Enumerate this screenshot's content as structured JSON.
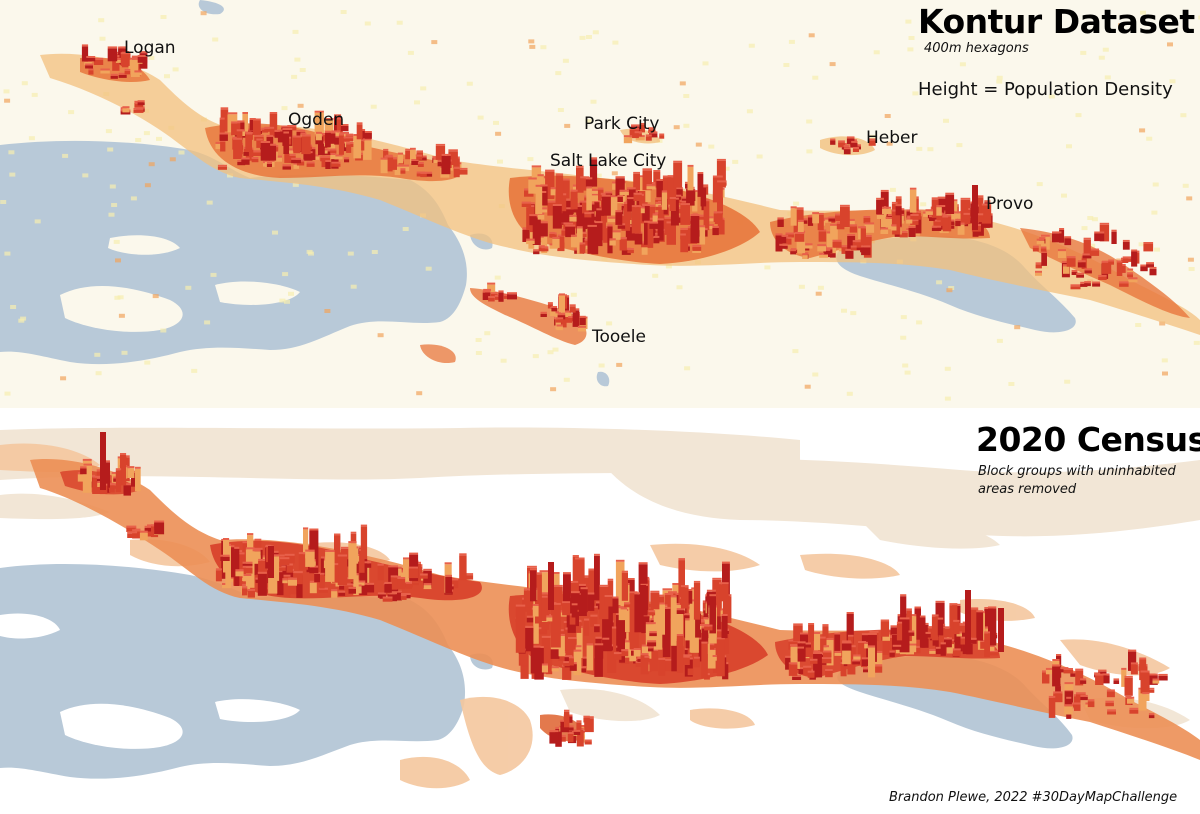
{
  "panels": {
    "kontur": {
      "title": "Kontur Dataset",
      "subtitle": "400m hexagons",
      "legend": "Height = Population Density",
      "cities": {
        "logan": "Logan",
        "ogden": "Ogden",
        "park_city": "Park City",
        "salt_lake_city": "Salt Lake City",
        "heber": "Heber",
        "provo": "Provo",
        "tooele": "Tooele"
      }
    },
    "census": {
      "title": "2020 Census",
      "subtitle_line1": "Block groups with uninhabited",
      "subtitle_line2": "areas removed"
    }
  },
  "credit": "Brandon Plewe, 2022 #30DayMapChallenge",
  "colors": {
    "water": "#b8c9d8",
    "land_light": "#fbf8ec",
    "density_low": "#f7eeb0",
    "density_mid": "#f1a45c",
    "density_high": "#d8432c",
    "density_peak": "#b51c1c",
    "census_pale": "#f2e6d6",
    "census_tan": "#f4c79e"
  },
  "icons": {
    "map_bars": "extruded-density-bars"
  }
}
